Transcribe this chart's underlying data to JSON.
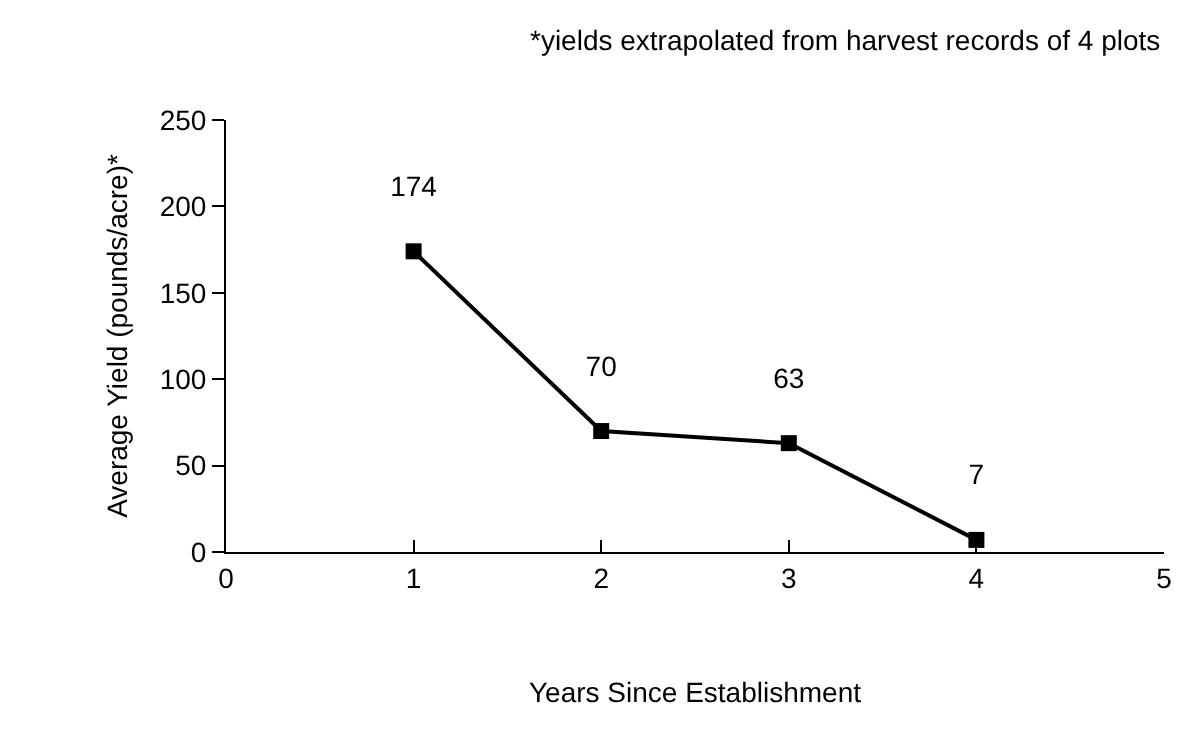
{
  "chart_data": {
    "type": "line",
    "xlabel": "Years Since Establishment",
    "ylabel": "Average Yield (pounds/acre)*",
    "annotations": [
      "*yields extrapolated from harvest records of 4 plots"
    ],
    "x": [
      1,
      2,
      3,
      4
    ],
    "series": [
      {
        "color": "#000000",
        "values": [
          174,
          70,
          63,
          7
        ]
      }
    ],
    "xlim": [
      0,
      5
    ],
    "xticks": [
      0,
      1,
      2,
      3,
      4,
      5
    ],
    "ylim": [
      0,
      250
    ],
    "yticks": [
      0,
      50,
      100,
      150,
      200,
      250
    ],
    "grid": false,
    "marker": "square",
    "line_style": "solid",
    "data_labels": true
  }
}
